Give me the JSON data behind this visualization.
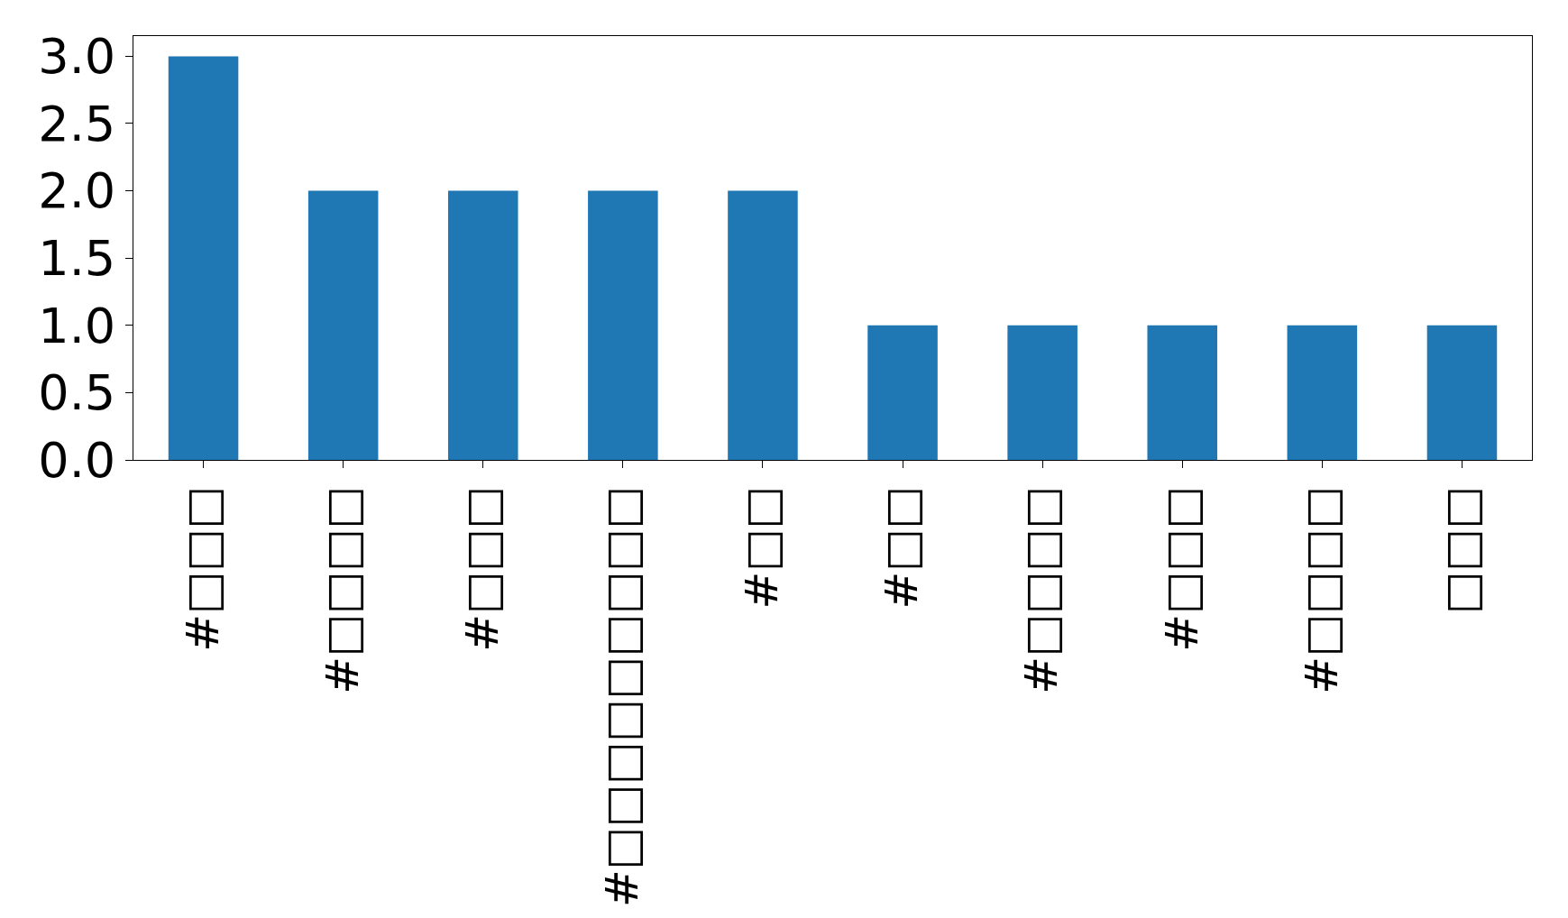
{
  "chart_data": {
    "type": "bar",
    "categories": [
      "#□□□",
      "#□□□□",
      "#□□□",
      "#□□□□□□□□□",
      "#□□",
      "#□□",
      "#□□□□",
      "#□□□",
      "#□□□□",
      "□□□"
    ],
    "values": [
      3,
      2,
      2,
      2,
      2,
      1,
      1,
      1,
      1,
      1
    ],
    "color": "#1f77b4",
    "ylim": [
      0,
      3.15
    ],
    "yticks": [
      {
        "value": 0,
        "label": "0.0"
      },
      {
        "value": 0.5,
        "label": "0.5"
      },
      {
        "value": 1,
        "label": "1.0"
      },
      {
        "value": 1.5,
        "label": "1.5"
      },
      {
        "value": 2,
        "label": "2.0"
      },
      {
        "value": 2.5,
        "label": "2.5"
      },
      {
        "value": 3,
        "label": "3.0"
      }
    ]
  }
}
